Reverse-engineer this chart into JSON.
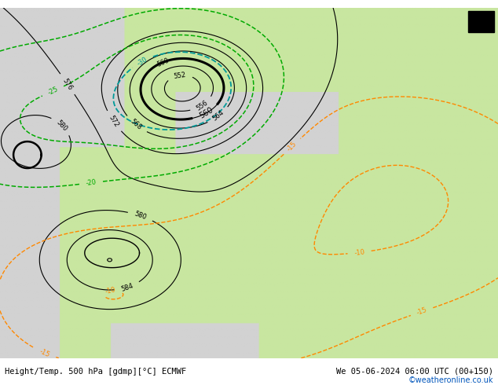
{
  "title_left": "Height/Temp. 500 hPa [gdmp][°C] ECMWF",
  "title_right": "We 05-06-2024 06:00 UTC (00+150)",
  "watermark": "©weatheronline.co.uk",
  "land_color": [
    200,
    230,
    160
  ],
  "sea_color": [
    210,
    210,
    210
  ],
  "col_black": "#000000",
  "col_green": "#00aa00",
  "col_cyan": "#009999",
  "col_orange": "#ff8800",
  "col_red": "#dd0000",
  "col_blue_link": "#0055bb",
  "fig_width": 6.34,
  "fig_height": 4.9,
  "dpi": 100
}
